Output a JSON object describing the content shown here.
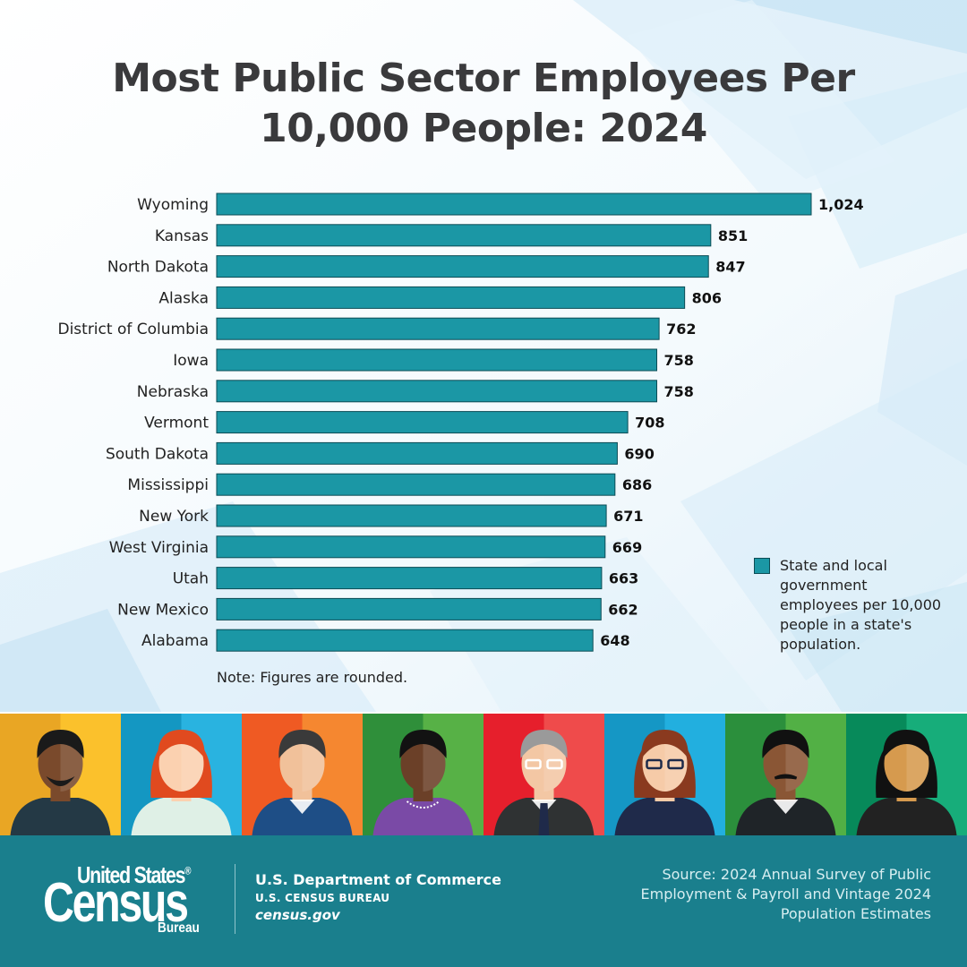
{
  "title": "Most Public Sector Employees Per 10,000 People: 2024",
  "chart_data": {
    "type": "bar",
    "orientation": "horizontal",
    "title": "Most Public Sector Employees Per 10,000 People: 2024",
    "categories": [
      "Wyoming",
      "Kansas",
      "North Dakota",
      "Alaska",
      "District of Columbia",
      "Iowa",
      "Nebraska",
      "Vermont",
      "South Dakota",
      "Mississippi",
      "New York",
      "West Virginia",
      "Utah",
      "New Mexico",
      "Alabama"
    ],
    "values": [
      1024,
      851,
      847,
      806,
      762,
      758,
      758,
      708,
      690,
      686,
      671,
      669,
      663,
      662,
      648
    ],
    "value_labels": [
      "1,024",
      "851",
      "847",
      "806",
      "762",
      "758",
      "758",
      "708",
      "690",
      "686",
      "671",
      "669",
      "663",
      "662",
      "648"
    ],
    "series": [
      {
        "name": "State and local government employees per 10,000 people in a state's population."
      }
    ],
    "xlim": [
      0,
      1024
    ],
    "grid": false,
    "legend_position": "bottom-right",
    "bar_color": "#1b97a5"
  },
  "legend": {
    "text": "State and local government employees per 10,000 people in a state's population."
  },
  "note": "Note: Figures are rounded.",
  "people_panel": {
    "colors": [
      [
        "#e9a624",
        "#fbc12c"
      ],
      [
        "#1497c2",
        "#29b3e0"
      ],
      [
        "#ef5a23",
        "#f58730"
      ],
      [
        "#2f8f3a",
        "#57b146"
      ],
      [
        "#e61f2c",
        "#ef4b4b"
      ],
      [
        "#1597c5",
        "#22afdf"
      ],
      [
        "#2b8f3c",
        "#52b045"
      ],
      [
        "#078a5a",
        "#17ad7a"
      ]
    ]
  },
  "footer": {
    "logo_line1": "United States",
    "logo_registered": "®",
    "logo_line2": "Census",
    "logo_line3": "Bureau",
    "department": "U.S. Department of Commerce",
    "bureau": "U.S. CENSUS BUREAU",
    "website": "census.gov",
    "source": "Source: 2024 Annual Survey of Public Employment & Payroll and Vintage 2024 Population Estimates"
  }
}
